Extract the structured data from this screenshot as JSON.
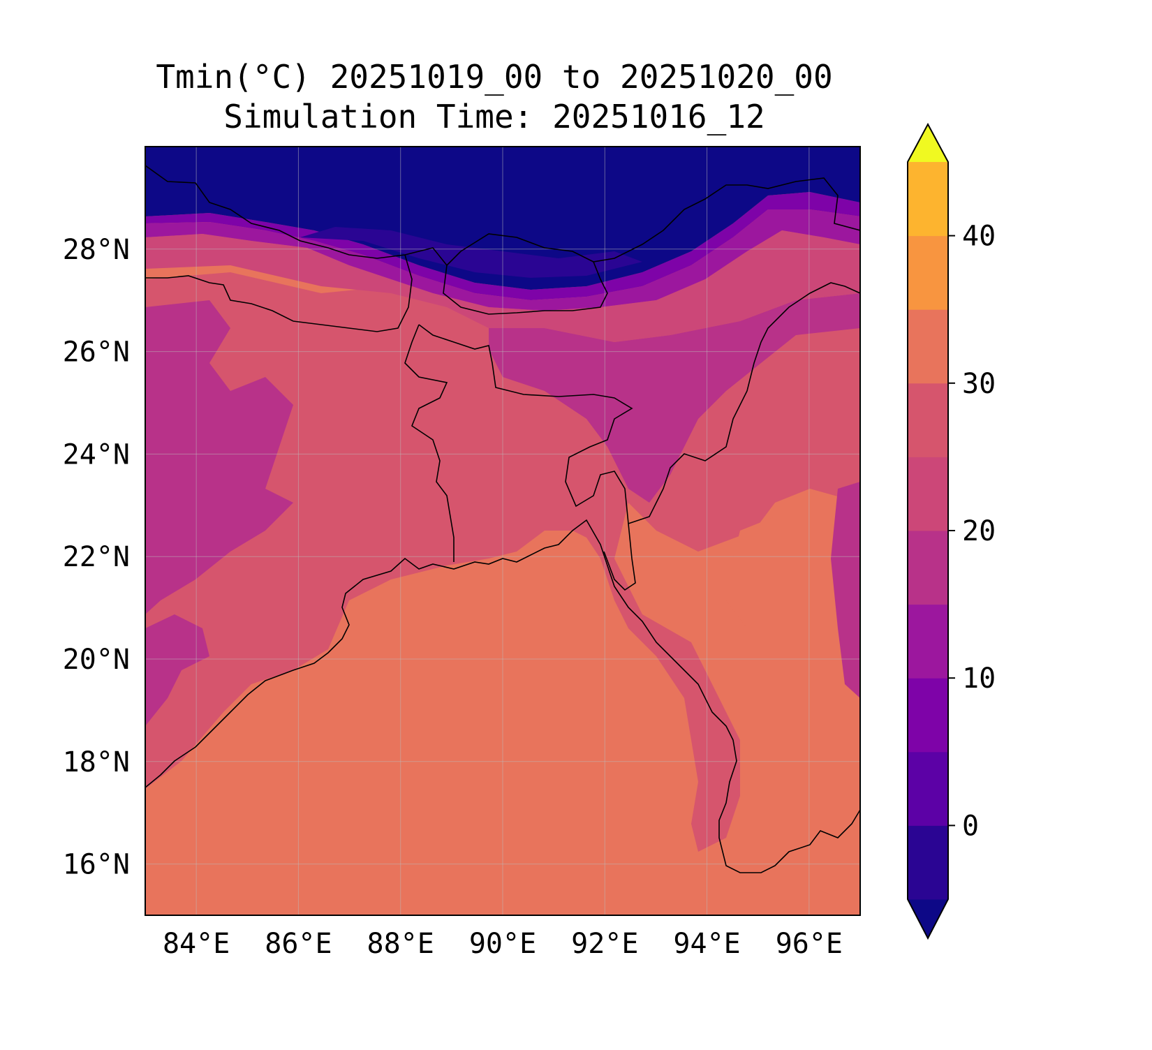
{
  "title_line1": "Tmin(°C) 20251019_00 to 20251020_00",
  "title_line2": "Simulation Time: 20251016_12",
  "map": {
    "lon_range": [
      83,
      97
    ],
    "lat_range": [
      15,
      30
    ],
    "x_ticks": [
      "84°E",
      "86°E",
      "88°E",
      "90°E",
      "92°E",
      "94°E",
      "96°E"
    ],
    "y_ticks": [
      "28°N",
      "26°N",
      "24°N",
      "22°N",
      "20°N",
      "18°N",
      "16°N"
    ],
    "gridlines": true
  },
  "colorbar": {
    "ticks": [
      "40",
      "30",
      "20",
      "10",
      "0"
    ],
    "levels": [
      -5,
      0,
      5,
      10,
      15,
      20,
      25,
      30,
      35,
      40,
      45
    ],
    "colors": [
      "#0d0887",
      "#2a0593",
      "#5c01a6",
      "#7e03a8",
      "#9c179e",
      "#b83289",
      "#cc4778",
      "#d6556d",
      "#e8745c",
      "#f89540",
      "#fdb42f",
      "#f0f921"
    ],
    "extend": "both"
  }
}
